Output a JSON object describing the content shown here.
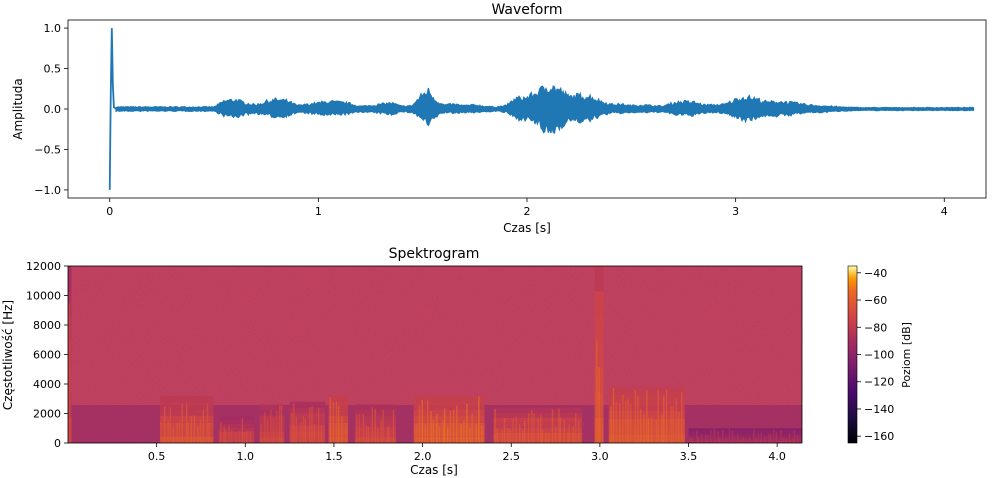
{
  "chart_data": [
    {
      "type": "line",
      "title": "Waveform",
      "xlabel": "Czas [s]",
      "ylabel": "Amplituda",
      "xlim": [
        -0.2,
        4.2
      ],
      "ylim": [
        -1.1,
        1.1
      ],
      "xticks": [
        0,
        1,
        2,
        3,
        4
      ],
      "yticks": [
        -1.0,
        -0.5,
        0.0,
        0.5,
        1.0
      ],
      "ytick_labels": [
        "−1.0",
        "−0.5",
        "0.0",
        "0.5",
        "1.0"
      ],
      "line_color": "#1f77b4",
      "duration_s": 4.14,
      "envelope": {
        "t": [
          0.0,
          0.005,
          0.01,
          0.02,
          0.03,
          0.5,
          0.55,
          0.6,
          0.65,
          0.7,
          0.75,
          0.8,
          0.85,
          0.9,
          0.95,
          1.0,
          1.05,
          1.1,
          1.15,
          1.2,
          1.25,
          1.3,
          1.35,
          1.4,
          1.45,
          1.5,
          1.53,
          1.56,
          1.6,
          1.65,
          1.7,
          1.75,
          1.8,
          1.85,
          1.9,
          1.95,
          2.0,
          2.05,
          2.1,
          2.15,
          2.2,
          2.25,
          2.3,
          2.35,
          2.4,
          2.45,
          2.5,
          2.55,
          2.6,
          2.65,
          2.7,
          2.75,
          2.8,
          2.85,
          2.9,
          2.95,
          3.0,
          3.05,
          3.1,
          3.15,
          3.2,
          3.25,
          3.3,
          3.35,
          3.4,
          3.45,
          3.5,
          3.6,
          3.8,
          4.0,
          4.14
        ],
        "pos": [
          1.0,
          0.05,
          0.03,
          0.03,
          0.03,
          0.03,
          0.12,
          0.14,
          0.09,
          0.06,
          0.11,
          0.14,
          0.12,
          0.05,
          0.07,
          0.09,
          0.11,
          0.1,
          0.08,
          0.04,
          0.05,
          0.07,
          0.09,
          0.04,
          0.05,
          0.22,
          0.28,
          0.14,
          0.06,
          0.07,
          0.05,
          0.06,
          0.04,
          0.03,
          0.05,
          0.16,
          0.17,
          0.25,
          0.35,
          0.3,
          0.18,
          0.2,
          0.19,
          0.12,
          0.07,
          0.07,
          0.05,
          0.06,
          0.05,
          0.04,
          0.09,
          0.11,
          0.1,
          0.06,
          0.06,
          0.07,
          0.14,
          0.18,
          0.15,
          0.1,
          0.11,
          0.1,
          0.08,
          0.06,
          0.05,
          0.04,
          0.03,
          0.02,
          0.02,
          0.02,
          0.02
        ],
        "neg": [
          -1.0,
          -0.05,
          -0.03,
          -0.03,
          -0.03,
          -0.03,
          -0.1,
          -0.12,
          -0.08,
          -0.06,
          -0.09,
          -0.12,
          -0.1,
          -0.05,
          -0.06,
          -0.08,
          -0.09,
          -0.08,
          -0.07,
          -0.04,
          -0.05,
          -0.06,
          -0.08,
          -0.04,
          -0.05,
          -0.15,
          -0.25,
          -0.12,
          -0.05,
          -0.06,
          -0.05,
          -0.05,
          -0.04,
          -0.03,
          -0.05,
          -0.14,
          -0.15,
          -0.22,
          -0.38,
          -0.28,
          -0.16,
          -0.18,
          -0.17,
          -0.1,
          -0.06,
          -0.06,
          -0.05,
          -0.05,
          -0.05,
          -0.04,
          -0.08,
          -0.09,
          -0.09,
          -0.06,
          -0.05,
          -0.06,
          -0.12,
          -0.16,
          -0.13,
          -0.09,
          -0.1,
          -0.09,
          -0.07,
          -0.05,
          -0.05,
          -0.04,
          -0.03,
          -0.02,
          -0.02,
          -0.02,
          -0.02
        ]
      }
    },
    {
      "type": "heatmap",
      "title": "Spektrogram",
      "xlabel": "Czas [s]",
      "ylabel": "Częstotliwość [Hz]",
      "xlim": [
        0.0,
        4.14
      ],
      "ylim": [
        0,
        12000
      ],
      "xticks": [
        0.5,
        1.0,
        1.5,
        2.0,
        2.5,
        3.0,
        3.5,
        4.0
      ],
      "xtick_labels": [
        "0.5",
        "1.0",
        "1.5",
        "2.0",
        "2.5",
        "3.0",
        "3.5",
        "4.0"
      ],
      "yticks": [
        0,
        2000,
        4000,
        6000,
        8000,
        10000,
        12000
      ],
      "colormap": "inferno",
      "colorbar": {
        "label": "Poziom [dB]",
        "range": [
          -165,
          -35
        ],
        "ticks": [
          -40,
          -60,
          -80,
          -100,
          -120,
          -140,
          -160
        ],
        "tick_labels": [
          "−40",
          "−60",
          "−80",
          "−100",
          "−120",
          "−140",
          "−160"
        ]
      },
      "background_level_db": -95,
      "energy_segments": [
        {
          "t0": 0.0,
          "t1": 0.02,
          "fmax": 12000,
          "level_db": -70
        },
        {
          "t0": 0.52,
          "t1": 0.82,
          "fmax": 3200,
          "level_db": -62
        },
        {
          "t0": 0.85,
          "t1": 1.05,
          "fmax": 1800,
          "level_db": -68
        },
        {
          "t0": 1.08,
          "t1": 1.22,
          "fmax": 2600,
          "level_db": -68
        },
        {
          "t0": 1.25,
          "t1": 1.45,
          "fmax": 2800,
          "level_db": -65
        },
        {
          "t0": 1.47,
          "t1": 1.58,
          "fmax": 3200,
          "level_db": -58
        },
        {
          "t0": 1.62,
          "t1": 1.85,
          "fmax": 2600,
          "level_db": -66
        },
        {
          "t0": 1.95,
          "t1": 2.35,
          "fmax": 3200,
          "level_db": -55
        },
        {
          "t0": 2.4,
          "t1": 2.9,
          "fmax": 2400,
          "level_db": -62
        },
        {
          "t0": 2.97,
          "t1": 3.02,
          "fmax": 12000,
          "level_db": -58
        },
        {
          "t0": 3.05,
          "t1": 3.48,
          "fmax": 3800,
          "level_db": -58
        },
        {
          "t0": 3.5,
          "t1": 4.14,
          "fmax": 1000,
          "level_db": -85
        }
      ]
    }
  ]
}
